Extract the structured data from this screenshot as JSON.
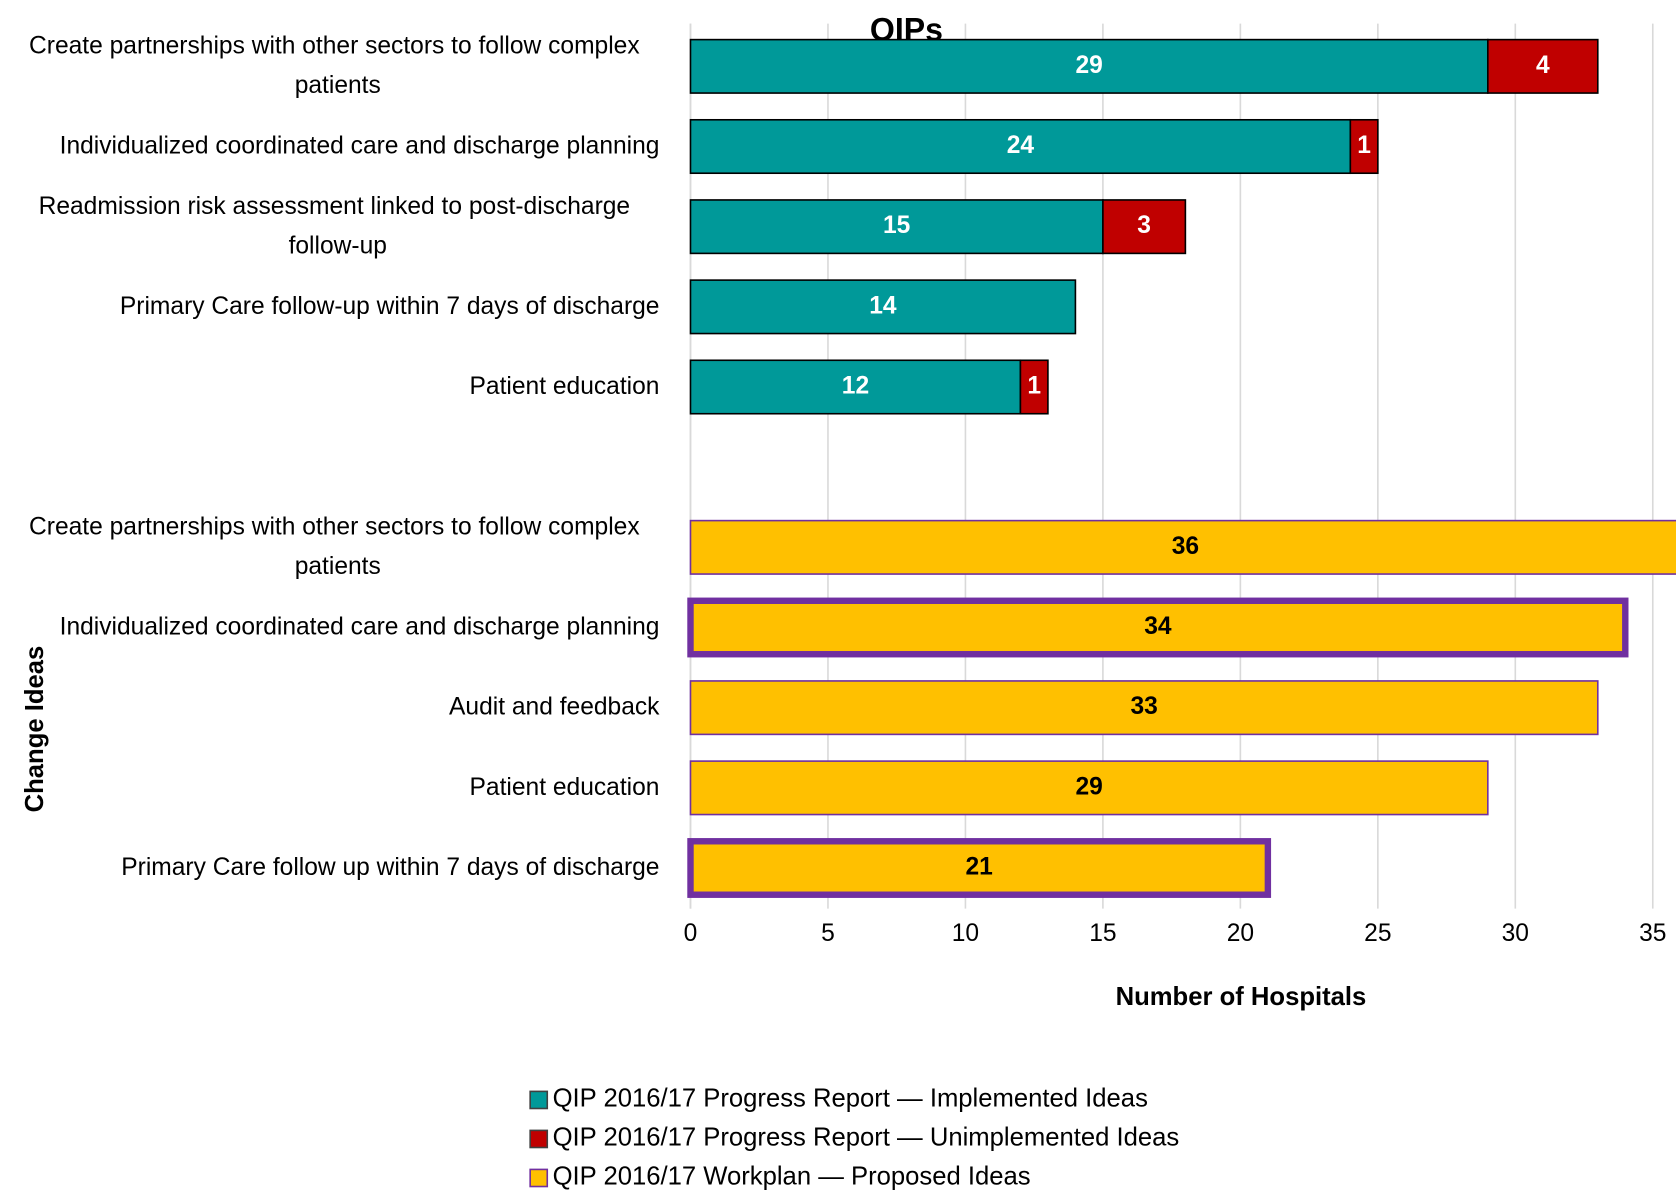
{
  "chart_data": {
    "type": "stacked-barh",
    "title": "QIPs",
    "categories": [
      "Create partnerships with other sectors to follow complex patients",
      "Individualized coordinated care and discharge planning",
      "Readmission risk assessment linked to post-discharge follow-up",
      "Primary Care follow-up within 7 days of discharge",
      "Patient education",
      null,
      "Create partnerships with other sectors to follow complex patients",
      "Individualized coordinated care and discharge planning",
      "Audit and feedback",
      "Patient education",
      "Primary Care follow up within 7 days of discharge"
    ],
    "series": [
      {
        "name": "QIP 2016/17 Progress Report — Implemented Ideas",
        "color": "#009999",
        "stroke": "#000000",
        "label_color": "#ffffff",
        "values": [
          29,
          24,
          15,
          14,
          12,
          null,
          null,
          null,
          null,
          null,
          null
        ]
      },
      {
        "name": "QIP 2016/17 Progress Report — Unimplemented Ideas",
        "color": "#c00000",
        "stroke": "#000000",
        "label_color": "#ffffff",
        "values": [
          4,
          1,
          3,
          null,
          1,
          null,
          null,
          null,
          null,
          null,
          null
        ]
      },
      {
        "name": "QIP 2016/17 Workplan — Proposed Ideas",
        "color": "#ffc000",
        "stroke": "#7030a0",
        "label_color": "#000000",
        "values": [
          null,
          null,
          null,
          null,
          null,
          null,
          36,
          34,
          33,
          29,
          21
        ]
      }
    ],
    "highlight": {
      "color": "#7030a0",
      "categories": [
        7,
        10
      ]
    },
    "xlabel": "Number of Hospitals",
    "ylabel": "Change Ideas",
    "xlim": [
      0,
      36
    ],
    "xticks": [
      0,
      5,
      10,
      15,
      20,
      25,
      30,
      35
    ],
    "grid": true,
    "legend": "bottom"
  }
}
